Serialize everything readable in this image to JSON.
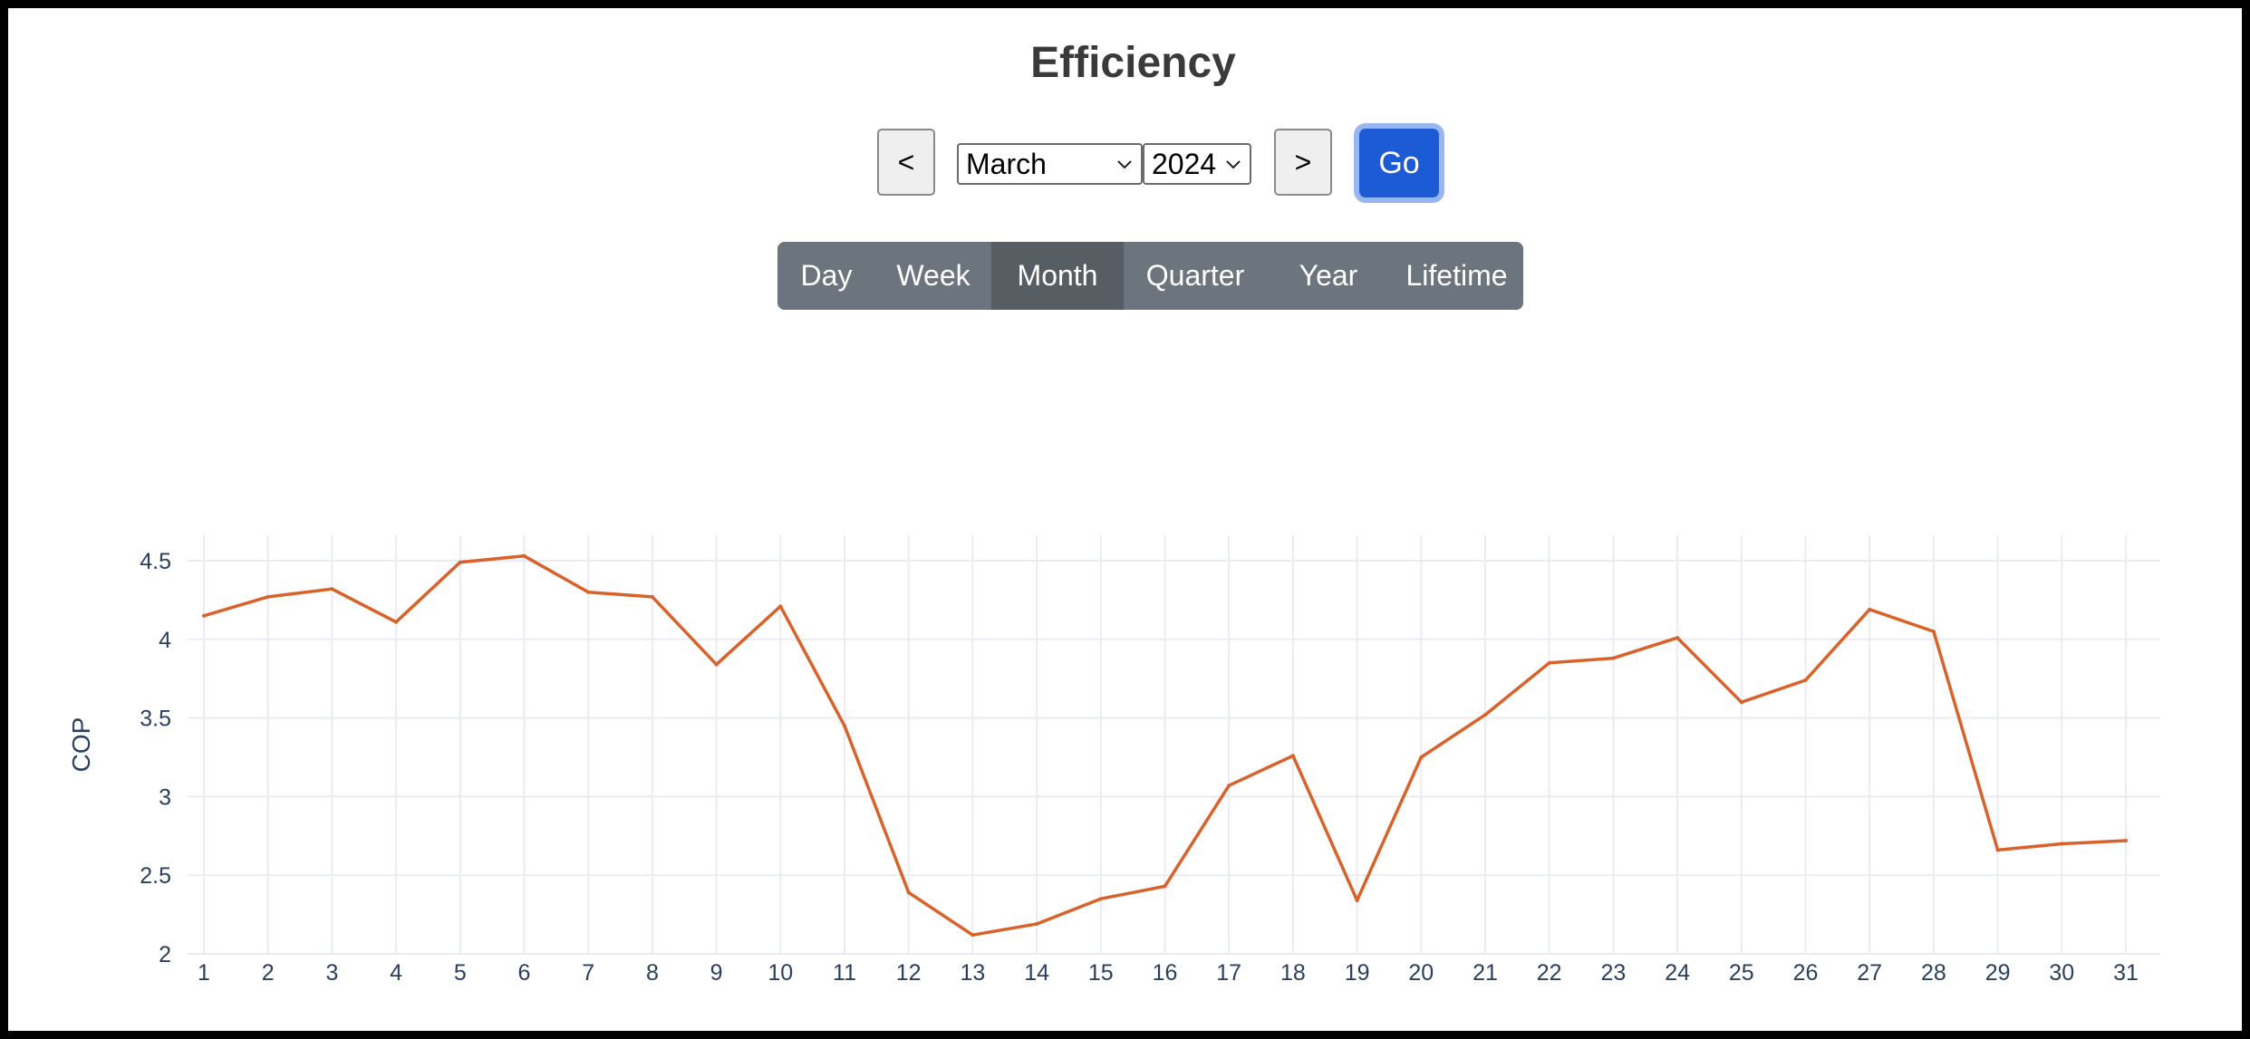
{
  "page": {
    "title": "Efficiency"
  },
  "controls": {
    "prev_label": "<",
    "next_label": ">",
    "month_selected": "March",
    "year_selected": "2024",
    "go_label": "Go",
    "dropdown_icon": "chevron-down-icon"
  },
  "periods": {
    "items": [
      "Day",
      "Week",
      "Month",
      "Quarter",
      "Year",
      "Lifetime"
    ],
    "active": "Month"
  },
  "colors": {
    "line": "#d9622b",
    "go_button": "#1d5bd6",
    "period_bg": "#6c757d",
    "period_active_bg": "#565e64",
    "grid": "#e9ecf3",
    "axis_text": "#2a3f5f"
  },
  "chart_data": {
    "type": "line",
    "title": "",
    "xlabel": "",
    "ylabel": "COP",
    "x": [
      1,
      2,
      3,
      4,
      5,
      6,
      7,
      8,
      9,
      10,
      11,
      12,
      13,
      14,
      15,
      16,
      17,
      18,
      19,
      20,
      21,
      22,
      23,
      24,
      25,
      26,
      27,
      28,
      29,
      30,
      31
    ],
    "series": [
      {
        "values": [
          4.15,
          4.27,
          4.32,
          4.11,
          4.49,
          4.53,
          4.3,
          4.27,
          3.84,
          4.21,
          3.45,
          2.39,
          2.12,
          2.19,
          2.35,
          2.43,
          3.07,
          3.26,
          2.34,
          3.25,
          3.52,
          3.85,
          3.88,
          4.01,
          3.6,
          3.74,
          4.19,
          4.05,
          2.66,
          2.7,
          2.72
        ]
      }
    ],
    "yticks": [
      "2",
      "2.5",
      "3",
      "3.5",
      "4",
      "4.5"
    ],
    "ylim": [
      2,
      4.65
    ],
    "grid": true,
    "legend": "none"
  }
}
